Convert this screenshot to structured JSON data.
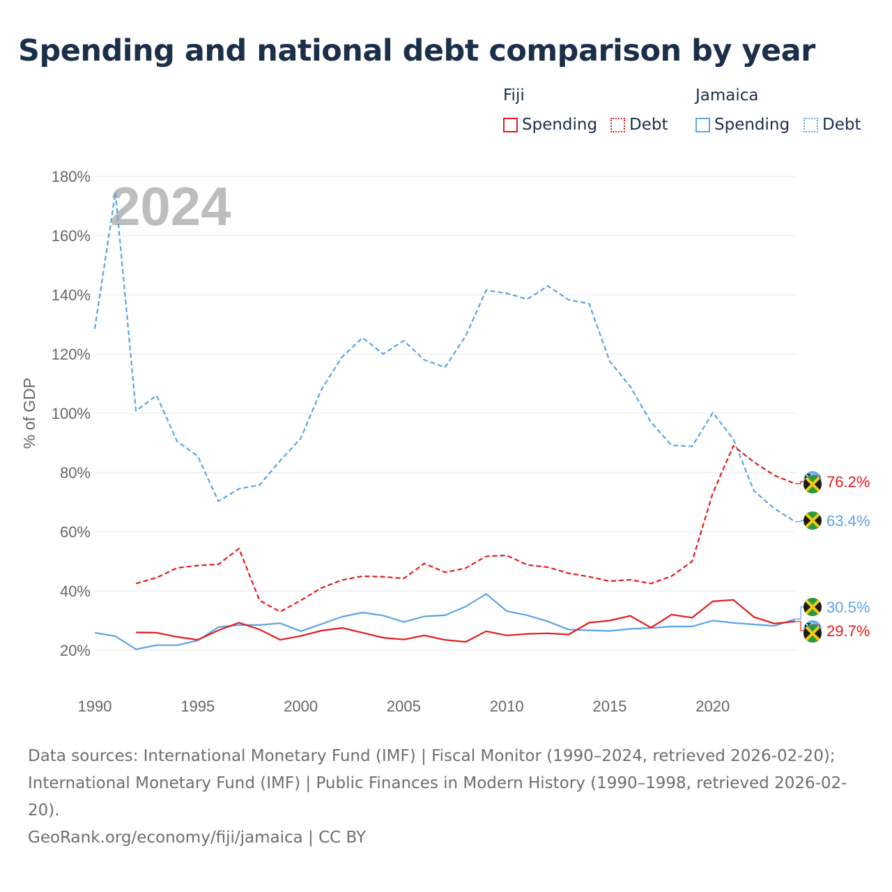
{
  "title": "Spending and national debt comparison by year",
  "legend": {
    "groups": [
      {
        "name": "Fiji",
        "color": "#e31a1c",
        "items": [
          {
            "label": "Spending",
            "style": "solid"
          },
          {
            "label": "Debt",
            "style": "dotted"
          }
        ]
      },
      {
        "name": "Jamaica",
        "color": "#5ba3e6",
        "items": [
          {
            "label": "Spending",
            "style": "solid"
          },
          {
            "label": "Debt",
            "style": "dotted"
          }
        ]
      }
    ]
  },
  "chart_data": {
    "type": "line",
    "title": "Spending and national debt comparison by year",
    "ylabel": "% of GDP",
    "xlabel": "",
    "xlim": [
      1990,
      2024
    ],
    "ylim": [
      10,
      180
    ],
    "yticks": [
      20,
      40,
      60,
      80,
      100,
      120,
      140,
      160,
      180
    ],
    "ytick_labels": [
      "20%",
      "40%",
      "60%",
      "80%",
      "100%",
      "120%",
      "140%",
      "160%",
      "180%"
    ],
    "xticks": [
      1990,
      1995,
      2000,
      2005,
      2010,
      2015,
      2020
    ],
    "xtick_labels": [
      "1990",
      "1995",
      "2000",
      "2005",
      "2010",
      "2015",
      "2020"
    ],
    "year_label": "2024",
    "series": [
      {
        "name": "Jamaica Debt",
        "country": "Jamaica",
        "measure": "Debt",
        "color": "#5ba3e6",
        "style": "dashed",
        "x": [
          1990,
          1991,
          1992,
          1993,
          1994,
          1995,
          1996,
          1997,
          1998,
          1999,
          2000,
          2001,
          2002,
          2003,
          2004,
          2005,
          2006,
          2007,
          2008,
          2009,
          2010,
          2011,
          2012,
          2013,
          2014,
          2015,
          2016,
          2017,
          2018,
          2019,
          2020,
          2021,
          2022,
          2023,
          2024
        ],
        "values": [
          128.5,
          174.5,
          100.8,
          106.0,
          90.5,
          85.5,
          70.3,
          74.5,
          75.8,
          84.0,
          91.5,
          108.0,
          119.0,
          125.5,
          120.0,
          124.5,
          118.0,
          115.5,
          126.0,
          141.5,
          140.5,
          138.5,
          143.0,
          138.3,
          137.0,
          117.5,
          109.0,
          97.0,
          89.2,
          88.8,
          100.2,
          91.3,
          73.8,
          67.8,
          63.4
        ]
      },
      {
        "name": "Fiji Debt",
        "country": "Fiji",
        "measure": "Debt",
        "color": "#e31a1c",
        "style": "dashed",
        "x": [
          1992,
          1993,
          1994,
          1995,
          1996,
          1997,
          1998,
          1999,
          2000,
          2001,
          2002,
          2003,
          2004,
          2005,
          2006,
          2007,
          2008,
          2009,
          2010,
          2011,
          2012,
          2013,
          2014,
          2015,
          2016,
          2017,
          2018,
          2019,
          2020,
          2021,
          2022,
          2023,
          2024
        ],
        "values": [
          42.5,
          44.5,
          47.8,
          48.6,
          49.0,
          54.3,
          36.8,
          33.0,
          36.8,
          41.0,
          43.7,
          45.0,
          44.8,
          44.2,
          49.3,
          46.3,
          47.7,
          51.7,
          52.0,
          48.8,
          48.0,
          46.0,
          44.8,
          43.3,
          43.8,
          42.5,
          45.0,
          50.0,
          73.0,
          89.0,
          83.5,
          79.0,
          76.2
        ]
      },
      {
        "name": "Jamaica Spending",
        "country": "Jamaica",
        "measure": "Spending",
        "color": "#5ba3e6",
        "style": "solid",
        "x": [
          1990,
          1991,
          1992,
          1993,
          1994,
          1995,
          1996,
          1997,
          1998,
          1999,
          2000,
          2001,
          2002,
          2003,
          2004,
          2005,
          2006,
          2007,
          2008,
          2009,
          2010,
          2011,
          2012,
          2013,
          2014,
          2015,
          2016,
          2017,
          2018,
          2019,
          2020,
          2021,
          2022,
          2023,
          2024
        ],
        "values": [
          25.9,
          24.7,
          20.3,
          21.7,
          21.7,
          23.3,
          27.8,
          28.5,
          28.5,
          29.1,
          26.4,
          28.8,
          31.3,
          32.7,
          31.7,
          29.5,
          31.4,
          31.8,
          34.7,
          39.0,
          33.2,
          31.8,
          29.7,
          27.0,
          26.7,
          26.5,
          27.2,
          27.5,
          28.0,
          28.0,
          30.0,
          29.2,
          28.7,
          28.2,
          30.5
        ]
      },
      {
        "name": "Fiji Spending",
        "country": "Fiji",
        "measure": "Spending",
        "color": "#e31a1c",
        "style": "solid",
        "x": [
          1992,
          1993,
          1994,
          1995,
          1996,
          1997,
          1998,
          1999,
          2000,
          2001,
          2002,
          2003,
          2004,
          2005,
          2006,
          2007,
          2008,
          2009,
          2010,
          2011,
          2012,
          2013,
          2014,
          2015,
          2016,
          2017,
          2018,
          2019,
          2020,
          2021,
          2022,
          2023,
          2024
        ],
        "values": [
          26.0,
          25.9,
          24.5,
          23.5,
          26.7,
          29.3,
          27.0,
          23.5,
          24.8,
          26.6,
          27.5,
          25.9,
          24.2,
          23.6,
          25.0,
          23.5,
          22.8,
          26.4,
          25.0,
          25.5,
          25.7,
          25.3,
          29.3,
          30.0,
          31.6,
          27.6,
          32.0,
          31.0,
          36.5,
          37.0,
          31.2,
          29.0,
          29.7
        ]
      }
    ],
    "end_labels": [
      {
        "series": "Fiji Debt",
        "text": "76.2%",
        "color": "#e31a1c",
        "flags": [
          "Fiji",
          "Jamaica"
        ]
      },
      {
        "series": "Jamaica Debt",
        "text": "63.4%",
        "color": "#5ba3e6",
        "flags": [
          "Jamaica"
        ]
      },
      {
        "series": "Jamaica Spending",
        "text": "30.5%",
        "color": "#5ba3e6",
        "flags": [
          "Jamaica"
        ]
      },
      {
        "series": "Fiji Spending",
        "text": "29.7%",
        "color": "#e31a1c",
        "flags": [
          "Fiji",
          "Jamaica"
        ]
      }
    ]
  },
  "footer": {
    "source_lines": [
      "Data sources: International Monetary Fund (IMF) | Fiscal Monitor (1990–2024, retrieved 2026-02-20);",
      "International Monetary Fund (IMF) | Public Finances in Modern History (1990–1998, retrieved 2026-02-",
      "20)."
    ],
    "credit": "GeoRank.org/economy/fiji/jamaica | CC BY"
  }
}
